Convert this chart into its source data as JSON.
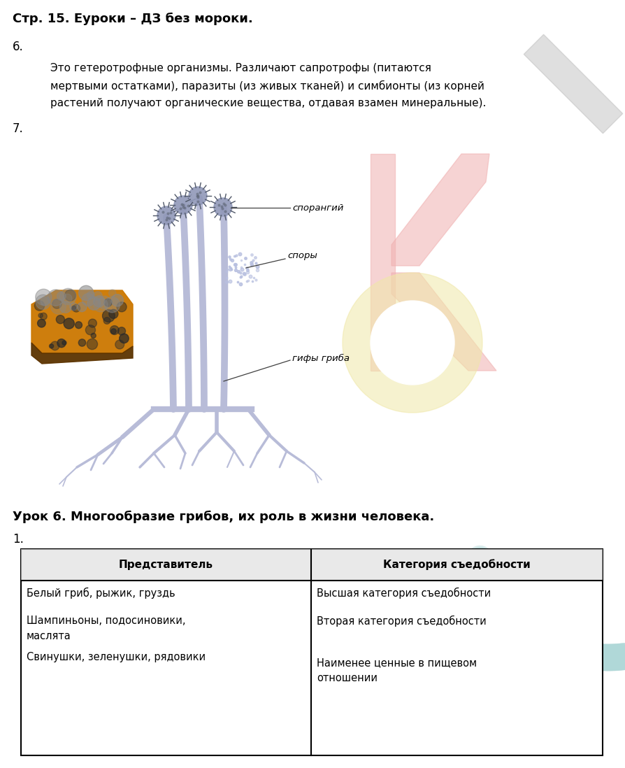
{
  "bg_color": "#ffffff",
  "title_text": "Стр. 15. Еуроки – ДЗ без мороки.",
  "section6_label": "6.",
  "section6_line1": "Это гетеротрофные организмы. Различают сапротрофы (питаются",
  "section6_line2": "мертвыми остатками), паразиты (из живых тканей) и симбионты (из корней",
  "section6_line3": "растений получают органические вещества, отдавая взамен минеральные).",
  "section7_label": "7.",
  "label_sporangiy": "спорангий",
  "label_spory": "споры",
  "label_giphy": "гифы гриба",
  "lesson_title": "Урок 6. Многообразие грибов, их роль в жизни человека.",
  "section1_label": "1.",
  "table_header_left": "Представитель",
  "table_header_right": "Категория съедобности",
  "row1_left": "Белый гриб, рыжик, груздь",
  "row1_right": "Высшая категория съедобности",
  "row2_left1": "Шампиньоны, подосиновики,",
  "row2_left2": "маслята",
  "row2_right": "Вторая категория съедобности",
  "row3_left": "Свинушки, зеленушки, рядовики",
  "row3_right1": "Наименее ценные в пищевом",
  "row3_right2": "отношении",
  "stalk_color": "#b8bcd8",
  "sporangia_color": "#9098b8",
  "spore_color": "#b8c0e0",
  "bread_orange": "#cc7700",
  "bread_brown": "#5c3300",
  "pink_wm": "#f0b0b0",
  "gray_wm": "#b8b8b8",
  "yellow_wm": "#f0e8a8",
  "teal_wm": "#b0d8d8"
}
